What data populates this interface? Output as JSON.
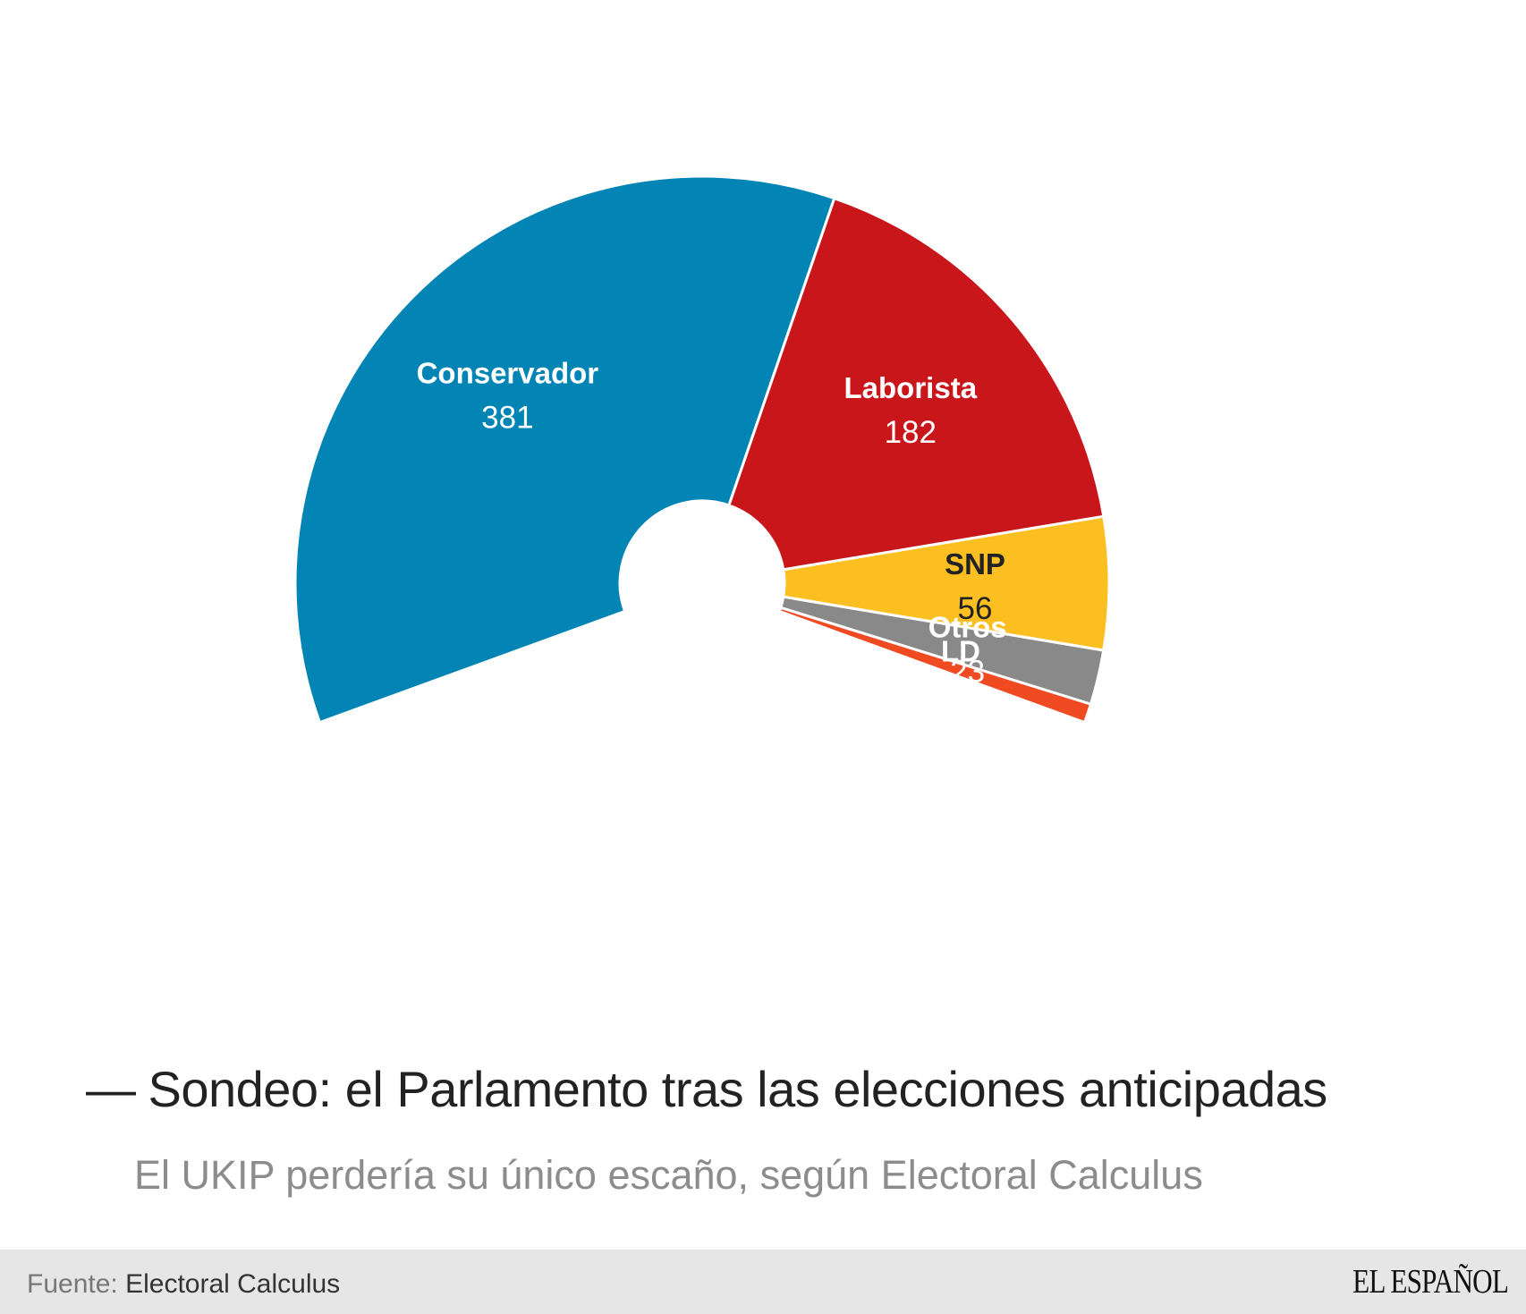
{
  "chart_data": {
    "type": "pie",
    "subtype": "parliament-arc",
    "total_seats": 650,
    "arc_degrees": 220,
    "series": [
      {
        "name": "Conservador",
        "value": 381,
        "color": "#0284b4",
        "name_color": "#ffffff",
        "value_color": "#ffffff"
      },
      {
        "name": "Laborista",
        "value": 182,
        "color": "#c8161b",
        "name_color": "#ffffff",
        "value_color": "#ffffff"
      },
      {
        "name": "SNP",
        "value": 56,
        "color": "#fbbf22",
        "name_color": "#222222",
        "value_color": "#222222"
      },
      {
        "name": "Otros",
        "value": 23,
        "color": "#898989",
        "name_color": "#ffffff",
        "value_color": "#ffffff"
      },
      {
        "name": "LD",
        "value": 8,
        "color": "#f04a23",
        "name_color": "#ffffff",
        "value_color": "#ffffff"
      }
    ]
  },
  "title": "Sondeo: el Parlamento tras las elecciones anticipadas",
  "title_dash": "—",
  "subtitle": "El UKIP perdería su único escaño, según Electoral Calculus",
  "footer": {
    "source_label": "Fuente:",
    "source_value": "Electoral Calculus",
    "logo_text": "EL ESPAÑOL"
  }
}
